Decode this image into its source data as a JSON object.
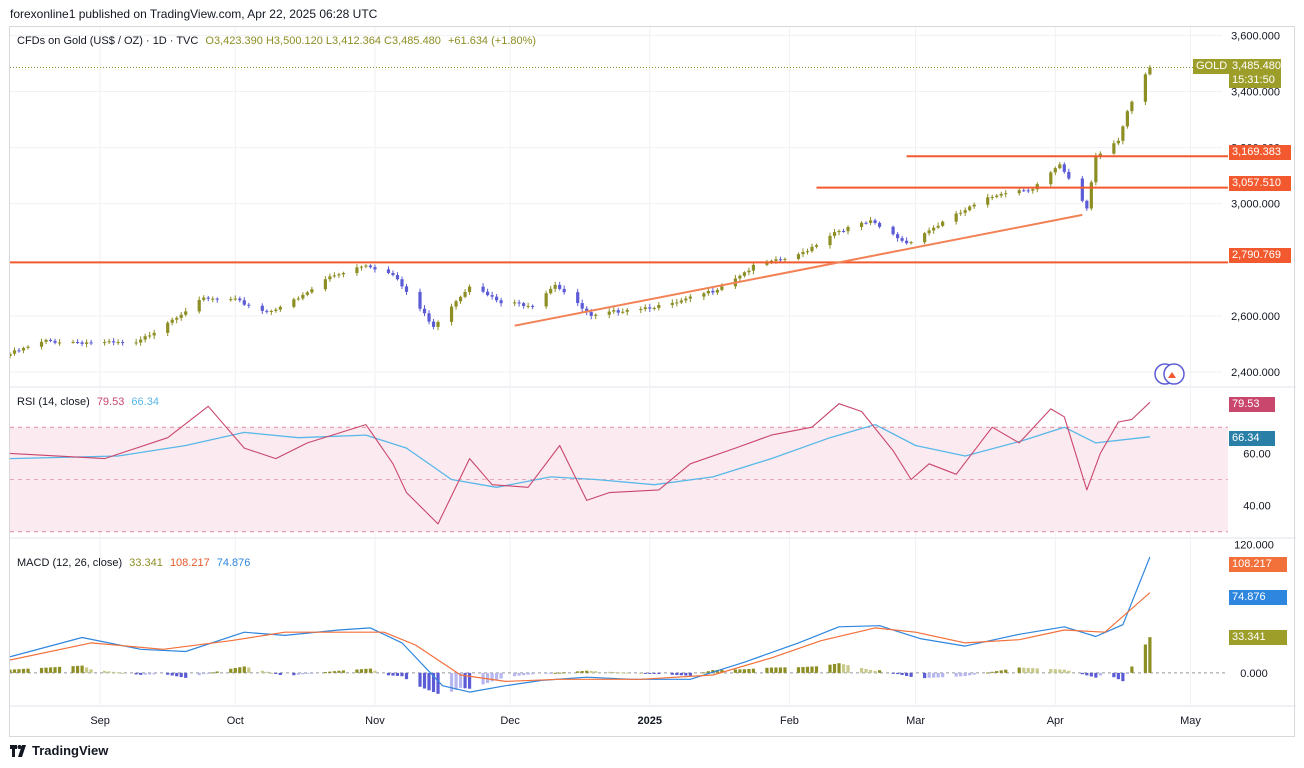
{
  "publisher_line": "forexonline1 published on TradingView.com, Apr 22, 2025 06:28 UTC",
  "footer_logo": "TradingView",
  "header": {
    "symbol": "CFDs on Gold (US$ / OZ) · 1D · TVC",
    "open_label": "O",
    "open": "3,423.390",
    "high_label": "H",
    "high": "3,500.120",
    "low_label": "L",
    "low": "3,412.364",
    "close_label": "C",
    "close": "3,485.480",
    "change": "+61.634 (+1.80%)"
  },
  "colors": {
    "bull": "#8d8e24",
    "bear": "#5b5bd6",
    "level_line": "#f2592e",
    "trend_line": "#f28155",
    "rsi_line": "#c9476c",
    "rsi_ma": "#58b8e8",
    "rsi_band": "#fbeaf0",
    "macd_line": "#2e86de",
    "signal_line": "#f2703a",
    "hist_up_strong": "#8d8e24",
    "hist_up_weak": "#c8c98a",
    "hist_down_strong": "#5b5bd6",
    "hist_down_weak": "#b7b7ef",
    "grid": "#f0f1f3"
  },
  "price_badges": {
    "symbol_badge": "GOLD",
    "last_price": "3,485.480",
    "countdown": "15:31:50",
    "level_1": "3,169.383",
    "level_2": "3,057.510",
    "level_3": "2,790.769"
  },
  "rsi_header": {
    "name": "RSI (14, close)",
    "value": "79.53",
    "ma": "66.34"
  },
  "macd_header": {
    "name": "MACD (12, 26, close)",
    "hist": "33.341",
    "macd": "108.217",
    "signal": "74.876"
  },
  "chart_data": [
    {
      "type": "candlestick",
      "title": "CFDs on Gold (US$ / OZ)",
      "timeframe": "1D",
      "y_ticks": [
        "3,600.000",
        "3,400.000",
        "3,200.000",
        "3,000.000",
        "2,600.000",
        "2,400.000"
      ],
      "ylim": [
        2350,
        3630
      ],
      "x_ticks": [
        "Sep",
        "Oct",
        "Nov",
        "Dec",
        "2025",
        "Feb",
        "Mar",
        "Apr",
        "May"
      ],
      "close_path": [
        [
          "2024-08-12",
          2465
        ],
        [
          "2024-08-20",
          2510
        ],
        [
          "2024-08-30",
          2505
        ],
        [
          "2024-09-09",
          2500
        ],
        [
          "2024-09-16",
          2580
        ],
        [
          "2024-09-24",
          2660
        ],
        [
          "2024-10-01",
          2655
        ],
        [
          "2024-10-08",
          2615
        ],
        [
          "2024-10-15",
          2660
        ],
        [
          "2024-10-22",
          2740
        ],
        [
          "2024-10-30",
          2785
        ],
        [
          "2024-11-05",
          2745
        ],
        [
          "2024-11-08",
          2685
        ],
        [
          "2024-11-14",
          2565
        ],
        [
          "2024-11-22",
          2710
        ],
        [
          "2024-11-29",
          2645
        ],
        [
          "2024-12-06",
          2640
        ],
        [
          "2024-12-11",
          2715
        ],
        [
          "2024-12-19",
          2595
        ],
        [
          "2024-12-27",
          2625
        ],
        [
          "2025-01-06",
          2640
        ],
        [
          "2025-01-15",
          2690
        ],
        [
          "2025-01-24",
          2775
        ],
        [
          "2025-02-03",
          2815
        ],
        [
          "2025-02-11",
          2900
        ],
        [
          "2025-02-19",
          2935
        ],
        [
          "2025-02-27",
          2860
        ],
        [
          "2025-03-05",
          2915
        ],
        [
          "2025-03-13",
          2985
        ],
        [
          "2025-03-20",
          3040
        ],
        [
          "2025-03-27",
          3055
        ],
        [
          "2025-04-02",
          3135
        ],
        [
          "2025-04-08",
          2985
        ],
        [
          "2025-04-10",
          3170
        ],
        [
          "2025-04-15",
          3230
        ],
        [
          "2025-04-17",
          3330
        ],
        [
          "2025-04-22",
          3485.48
        ]
      ],
      "levels": [
        3169.383,
        3057.51,
        2790.769
      ],
      "trendline": [
        [
          "2024-12-02",
          2565
        ],
        [
          "2025-04-07",
          2960
        ]
      ]
    },
    {
      "type": "line",
      "title": "RSI (14, close)",
      "y_ticks": [
        "60.00",
        "40.00"
      ],
      "ylim": [
        28,
        85
      ],
      "band": [
        30,
        70
      ],
      "midline": 50,
      "series": [
        {
          "name": "RSI",
          "points": [
            [
              "2024-08-12",
              60
            ],
            [
              "2024-09-02",
              58
            ],
            [
              "2024-09-16",
              66
            ],
            [
              "2024-09-25",
              78
            ],
            [
              "2024-10-03",
              62
            ],
            [
              "2024-10-10",
              58
            ],
            [
              "2024-10-17",
              64
            ],
            [
              "2024-10-30",
              71
            ],
            [
              "2024-11-05",
              56
            ],
            [
              "2024-11-08",
              45
            ],
            [
              "2024-11-15",
              33
            ],
            [
              "2024-11-22",
              58
            ],
            [
              "2024-11-27",
              48
            ],
            [
              "2024-12-05",
              47
            ],
            [
              "2024-12-12",
              63
            ],
            [
              "2024-12-18",
              42
            ],
            [
              "2024-12-23",
              45
            ],
            [
              "2025-01-03",
              46
            ],
            [
              "2025-01-10",
              56
            ],
            [
              "2025-01-20",
              62
            ],
            [
              "2025-01-28",
              67
            ],
            [
              "2025-02-06",
              70
            ],
            [
              "2025-02-12",
              79
            ],
            [
              "2025-02-17",
              76
            ],
            [
              "2025-02-24",
              61
            ],
            [
              "2025-02-28",
              50
            ],
            [
              "2025-03-04",
              56
            ],
            [
              "2025-03-10",
              52
            ],
            [
              "2025-03-18",
              70
            ],
            [
              "2025-03-24",
              64
            ],
            [
              "2025-03-31",
              77
            ],
            [
              "2025-04-03",
              74
            ],
            [
              "2025-04-08",
              46
            ],
            [
              "2025-04-11",
              60
            ],
            [
              "2025-04-15",
              72
            ],
            [
              "2025-04-18",
              73
            ],
            [
              "2025-04-22",
              79.53
            ]
          ]
        },
        {
          "name": "RSI MA",
          "points": [
            [
              "2024-08-12",
              58
            ],
            [
              "2024-09-05",
              59
            ],
            [
              "2024-09-20",
              63
            ],
            [
              "2024-10-03",
              68
            ],
            [
              "2024-10-15",
              66
            ],
            [
              "2024-10-30",
              67
            ],
            [
              "2024-11-08",
              62
            ],
            [
              "2024-11-18",
              50
            ],
            [
              "2024-11-28",
              47
            ],
            [
              "2024-12-10",
              51
            ],
            [
              "2024-12-20",
              50
            ],
            [
              "2025-01-02",
              48
            ],
            [
              "2025-01-15",
              51
            ],
            [
              "2025-01-28",
              58
            ],
            [
              "2025-02-10",
              66
            ],
            [
              "2025-02-20",
              71
            ],
            [
              "2025-03-01",
              63
            ],
            [
              "2025-03-12",
              59
            ],
            [
              "2025-03-25",
              65
            ],
            [
              "2025-04-03",
              70
            ],
            [
              "2025-04-10",
              64
            ],
            [
              "2025-04-22",
              66.34
            ]
          ]
        }
      ]
    },
    {
      "type": "line",
      "title": "MACD (12, 26, close)",
      "y_ticks": [
        "120.000",
        "0.000"
      ],
      "ylim": [
        -30,
        125
      ],
      "series": [
        {
          "name": "MACD",
          "points": [
            [
              "2024-08-12",
              15
            ],
            [
              "2024-08-28",
              33
            ],
            [
              "2024-09-10",
              22
            ],
            [
              "2024-09-20",
              20
            ],
            [
              "2024-10-03",
              38
            ],
            [
              "2024-10-12",
              35
            ],
            [
              "2024-10-24",
              40
            ],
            [
              "2024-10-31",
              42
            ],
            [
              "2024-11-07",
              28
            ],
            [
              "2024-11-16",
              -12
            ],
            [
              "2024-11-22",
              -18
            ],
            [
              "2024-11-30",
              -12
            ],
            [
              "2024-12-08",
              -7
            ],
            [
              "2024-12-18",
              -4
            ],
            [
              "2024-12-28",
              -6
            ],
            [
              "2025-01-10",
              -6
            ],
            [
              "2025-01-22",
              10
            ],
            [
              "2025-02-03",
              28
            ],
            [
              "2025-02-12",
              43
            ],
            [
              "2025-02-21",
              44
            ],
            [
              "2025-03-02",
              32
            ],
            [
              "2025-03-12",
              25
            ],
            [
              "2025-03-24",
              36
            ],
            [
              "2025-04-03",
              43
            ],
            [
              "2025-04-10",
              34
            ],
            [
              "2025-04-16",
              45
            ],
            [
              "2025-04-22",
              108.217
            ]
          ]
        },
        {
          "name": "Signal",
          "points": [
            [
              "2024-08-12",
              12
            ],
            [
              "2024-08-30",
              28
            ],
            [
              "2024-09-15",
              22
            ],
            [
              "2024-09-30",
              30
            ],
            [
              "2024-10-12",
              38
            ],
            [
              "2024-10-24",
              38
            ],
            [
              "2024-11-03",
              38
            ],
            [
              "2024-11-10",
              26
            ],
            [
              "2024-11-20",
              -2
            ],
            [
              "2024-11-30",
              -8
            ],
            [
              "2024-12-12",
              -6
            ],
            [
              "2024-12-30",
              -6
            ],
            [
              "2025-01-15",
              -2
            ],
            [
              "2025-01-28",
              14
            ],
            [
              "2025-02-08",
              30
            ],
            [
              "2025-02-20",
              42
            ],
            [
              "2025-03-01",
              38
            ],
            [
              "2025-03-12",
              28
            ],
            [
              "2025-03-24",
              31
            ],
            [
              "2025-04-03",
              40
            ],
            [
              "2025-04-12",
              38
            ],
            [
              "2025-04-22",
              74.876
            ]
          ]
        }
      ]
    }
  ]
}
